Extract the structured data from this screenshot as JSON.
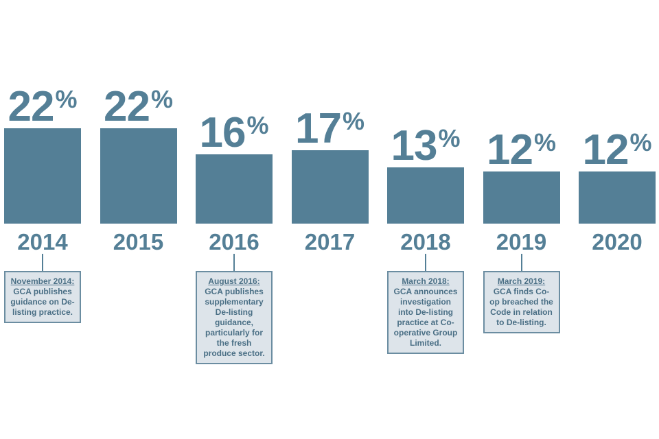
{
  "colors": {
    "bar": "#547f96",
    "note_bg": "#dde4ea",
    "note_border": "#6b8da1"
  },
  "chart_data": {
    "type": "bar",
    "categories": [
      "2014",
      "2015",
      "2016",
      "2017",
      "2018",
      "2019",
      "2020"
    ],
    "values": [
      22,
      22,
      16,
      17,
      13,
      12,
      12
    ],
    "value_labels": [
      "22",
      "22",
      "16",
      "17",
      "13",
      "12",
      "12"
    ],
    "unit": "%",
    "title": "",
    "xlabel": "",
    "ylabel": "",
    "grid": false,
    "legend": "none",
    "annotations": [
      {
        "category": "2014",
        "date": "November 2014:",
        "text": "GCA publishes guidance on De-listing practice."
      },
      {
        "category": "2016",
        "date": "August 2016:",
        "text": "GCA publishes supplementary De-listing guidance, particularly for the fresh produce sector."
      },
      {
        "category": "2018",
        "date": "March 2018:",
        "text": "GCA announces investigation into De-listing practice at Co-operative Group Limited."
      },
      {
        "category": "2019",
        "date": "March 2019:",
        "text": "GCA finds Co-op breached the Code in relation to De-listing."
      }
    ]
  }
}
